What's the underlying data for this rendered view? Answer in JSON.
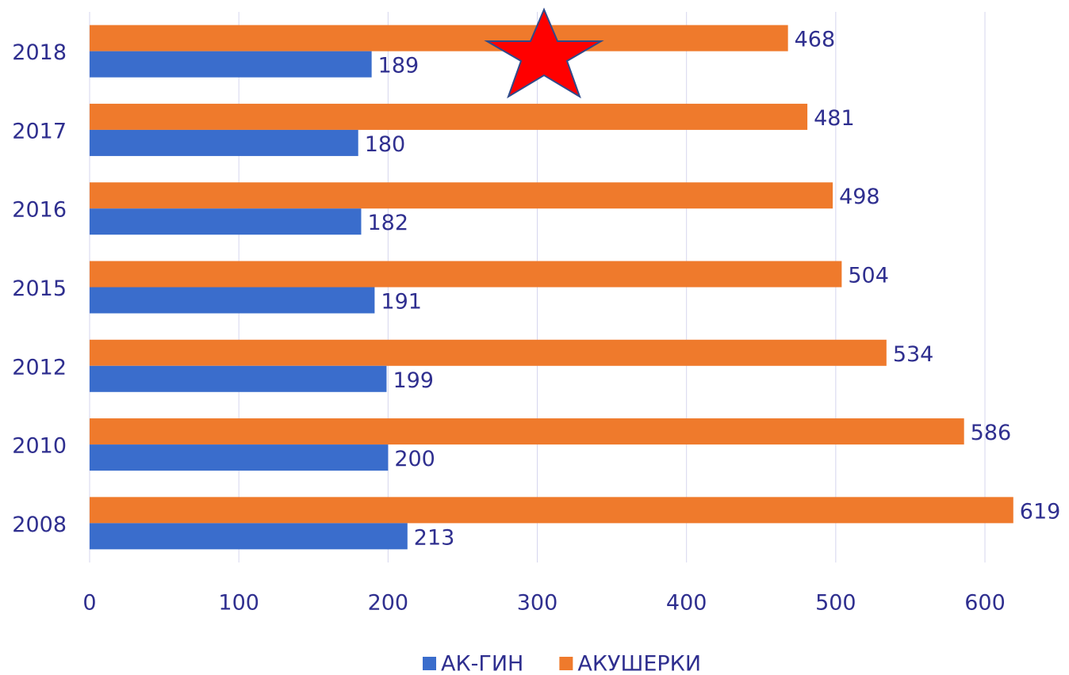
{
  "chart_data": {
    "type": "bar",
    "orientation": "horizontal",
    "categories": [
      "2018",
      "2017",
      "2016",
      "2015",
      "2012",
      "2010",
      "2008"
    ],
    "series": [
      {
        "name": "АК-ГИН",
        "color": "#3a6dcc",
        "values": [
          189,
          180,
          182,
          191,
          199,
          200,
          213
        ]
      },
      {
        "name": "АКУШЕРКИ",
        "color": "#ef7a2c",
        "values": [
          468,
          481,
          498,
          504,
          534,
          586,
          619
        ]
      }
    ],
    "xlim": [
      0,
      650
    ],
    "xticks": [
      0,
      100,
      200,
      300,
      400,
      500,
      600
    ],
    "grid": true,
    "legend": "bottom"
  }
}
